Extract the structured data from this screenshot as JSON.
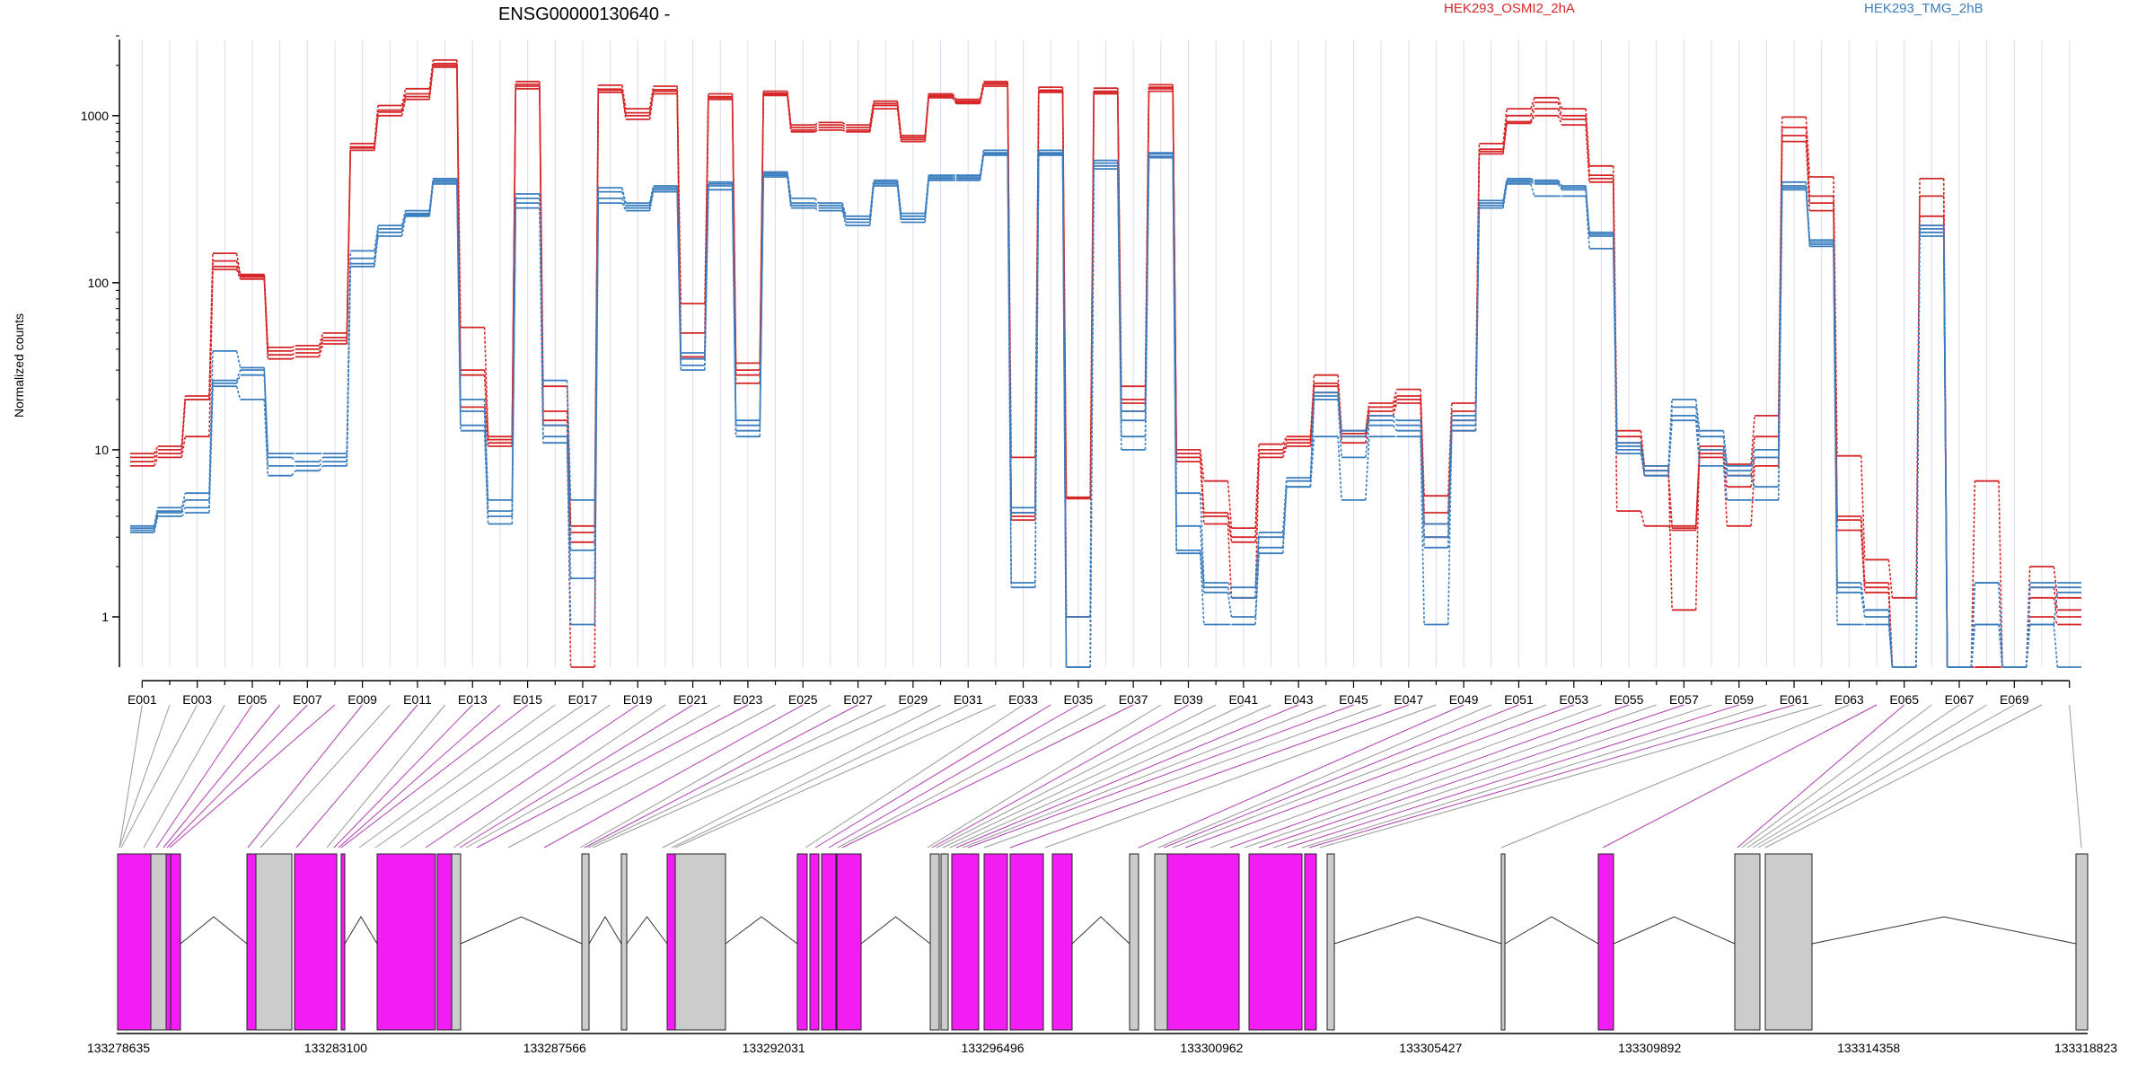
{
  "chart_data": {
    "type": "line",
    "title": "ENSG00000130640 -",
    "ylabel": "Normalized counts",
    "yscale": "log",
    "ylim": [
      0.5,
      3000
    ],
    "yticks": [
      1,
      10,
      100,
      1000
    ],
    "ytick_labels": [
      "1",
      "10",
      "100",
      "1000"
    ],
    "n_exons": 71,
    "xtick_labels": [
      "E001",
      "E003",
      "E005",
      "E007",
      "E009",
      "E011",
      "E013",
      "E015",
      "E017",
      "E019",
      "E021",
      "E023",
      "E025",
      "E027",
      "E029",
      "E031",
      "E033",
      "E035",
      "E037",
      "E039",
      "E041",
      "E043",
      "E045",
      "E047",
      "E049",
      "E051",
      "E053",
      "E055",
      "E057",
      "E059",
      "E061",
      "E063",
      "E065",
      "E067",
      "E069"
    ],
    "legend": [
      {
        "name": "HEK293_OSMI2_2hA",
        "color": "#d62728"
      },
      {
        "name": "HEK293_TMG_2hB",
        "color": "#3a7ebf"
      }
    ],
    "series": [
      {
        "group": 0,
        "values": [
          9.5,
          10.5,
          21,
          150,
          112,
          41,
          42,
          50,
          680,
          1150,
          1450,
          2150,
          54,
          12,
          1600,
          24,
          3.5,
          1520,
          1100,
          1500,
          75,
          1350,
          33,
          1400,
          880,
          910,
          880,
          1220,
          760,
          1350,
          1250,
          1600,
          9,
          1480,
          5.2,
          1460,
          24,
          1530,
          10,
          6.5,
          3.4,
          10.8,
          12,
          28,
          13,
          19,
          23,
          5.3,
          19,
          680,
          1100,
          1280,
          1100,
          500,
          13,
          8,
          1.1,
          10.5,
          8.2,
          16,
          980,
          430,
          9.2,
          2.2,
          1.3,
          420,
          0.5,
          6.5,
          0.5,
          2,
          1.3
        ]
      },
      {
        "group": 0,
        "values": [
          9,
          10,
          20,
          135,
          110,
          39,
          40,
          47,
          650,
          1080,
          1350,
          2050,
          30,
          11.5,
          1540,
          17,
          3.2,
          1440,
          1040,
          1430,
          50,
          1300,
          30,
          1360,
          850,
          880,
          850,
          1180,
          740,
          1320,
          1220,
          1560,
          4.2,
          1420,
          5.1,
          1400,
          20,
          1480,
          9.5,
          4.2,
          3,
          10,
          11.5,
          25,
          12.5,
          18,
          21,
          4.2,
          17,
          630,
          1000,
          1200,
          1000,
          440,
          12,
          7.5,
          3.5,
          10,
          7,
          12,
          850,
          330,
          4,
          1.6,
          0.5,
          330,
          0.5,
          0.5,
          0.5,
          1.5,
          1.1
        ]
      },
      {
        "group": 0,
        "values": [
          8.5,
          9.5,
          20,
          125,
          108,
          37,
          38,
          45,
          640,
          1050,
          1300,
          2000,
          28,
          11,
          1500,
          15,
          2.8,
          1420,
          1000,
          1400,
          36,
          1280,
          28,
          1340,
          820,
          850,
          820,
          1150,
          720,
          1300,
          1200,
          1540,
          4,
          1400,
          1,
          1380,
          19,
          1450,
          9,
          4,
          2.8,
          9.5,
          11,
          24,
          12,
          17,
          20,
          3.6,
          15,
          610,
          920,
          1100,
          950,
          420,
          11,
          7,
          3.4,
          9.5,
          6,
          9,
          760,
          300,
          3.8,
          1.5,
          0.5,
          250,
          0.5,
          0.5,
          0.5,
          1.3,
          1
        ]
      },
      {
        "group": 0,
        "values": [
          8,
          9,
          12,
          120,
          105,
          35,
          36,
          43,
          620,
          1000,
          1250,
          1950,
          18,
          10.5,
          1450,
          14,
          0.5,
          1380,
          950,
          1350,
          36,
          1250,
          25,
          1320,
          800,
          820,
          800,
          1100,
          700,
          1280,
          1180,
          1500,
          3.8,
          1380,
          1,
          1350,
          17,
          1400,
          8.5,
          3.6,
          1.3,
          9,
          10.5,
          22,
          11,
          16,
          19,
          3,
          13,
          590,
          900,
          1000,
          880,
          400,
          4.3,
          3.5,
          3.3,
          9,
          3.5,
          8,
          700,
          270,
          3.3,
          1.4,
          0.5,
          220,
          0.5,
          0.5,
          0.5,
          1,
          0.9
        ]
      },
      {
        "group": 1,
        "values": [
          3.5,
          4.5,
          5.5,
          39,
          31,
          9.5,
          9.5,
          9.5,
          155,
          220,
          270,
          420,
          20,
          5,
          340,
          26,
          5,
          370,
          300,
          380,
          38,
          400,
          15,
          460,
          320,
          300,
          250,
          410,
          260,
          440,
          440,
          620,
          4.5,
          620,
          1,
          540,
          17,
          600,
          5.5,
          1.6,
          1.5,
          3.2,
          6.8,
          22,
          13,
          16,
          15,
          3.6,
          16,
          310,
          420,
          410,
          380,
          200,
          11,
          8,
          20,
          13,
          8,
          10,
          400,
          180,
          1.6,
          1.1,
          0.5,
          220,
          0.5,
          1.6,
          0.5,
          1.6,
          1.6
        ]
      },
      {
        "group": 1,
        "values": [
          3.4,
          4.3,
          5,
          26,
          30,
          9,
          8.5,
          9,
          140,
          210,
          260,
          410,
          17,
          4.3,
          320,
          14,
          2.5,
          350,
          290,
          370,
          35,
          390,
          14,
          450,
          300,
          290,
          240,
          400,
          250,
          430,
          430,
          600,
          4.2,
          600,
          0.5,
          520,
          15,
          590,
          3.5,
          1.5,
          1.3,
          3,
          6.5,
          21,
          12,
          15,
          14,
          3,
          15,
          300,
          410,
          400,
          370,
          195,
          10.5,
          7.5,
          18,
          12,
          7.5,
          9,
          380,
          175,
          1.5,
          1.1,
          0.5,
          210,
          0.5,
          1.6,
          0.5,
          1.5,
          1.5
        ]
      },
      {
        "group": 1,
        "values": [
          3.3,
          4.2,
          4.5,
          25,
          28,
          8,
          8,
          8.5,
          130,
          200,
          255,
          400,
          14,
          4,
          300,
          12,
          1.7,
          320,
          280,
          360,
          32,
          380,
          13,
          440,
          290,
          280,
          230,
          390,
          240,
          420,
          420,
          590,
          1.6,
          590,
          0.5,
          500,
          12,
          570,
          2.5,
          1.4,
          1,
          2.6,
          6,
          20,
          9,
          14,
          13,
          2.6,
          14,
          290,
          400,
          390,
          360,
          190,
          10,
          7,
          16,
          10,
          7,
          6,
          370,
          170,
          1.4,
          1,
          0.5,
          200,
          0.5,
          0.9,
          0.5,
          0.9,
          1.4
        ]
      },
      {
        "group": 1,
        "values": [
          3.2,
          4,
          4.2,
          24,
          20,
          7,
          7.5,
          8,
          125,
          190,
          250,
          390,
          13,
          3.6,
          280,
          11,
          0.9,
          300,
          270,
          350,
          30,
          360,
          12,
          430,
          280,
          270,
          220,
          380,
          230,
          410,
          410,
          580,
          1.5,
          580,
          0.5,
          480,
          10,
          560,
          2.4,
          0.9,
          0.9,
          2.4,
          6,
          12,
          5,
          12,
          12,
          0.9,
          13,
          280,
          390,
          330,
          330,
          160,
          9.5,
          7,
          15,
          8,
          5,
          5,
          360,
          165,
          0.9,
          0.9,
          0.5,
          190,
          0.5,
          0.9,
          0.5,
          0.9,
          0.5
        ]
      }
    ],
    "gene_model": {
      "coordinate_labels": [
        "133278635",
        "133283100",
        "133287566",
        "133292031",
        "133296496",
        "133300962",
        "133305427",
        "133309892",
        "133314358",
        "133318823"
      ],
      "colors": {
        "tested_exon": "#f21df2",
        "other_exon": "#cccccc",
        "link_highlight": "#b03fb0",
        "link_default": "#999999"
      }
    }
  }
}
